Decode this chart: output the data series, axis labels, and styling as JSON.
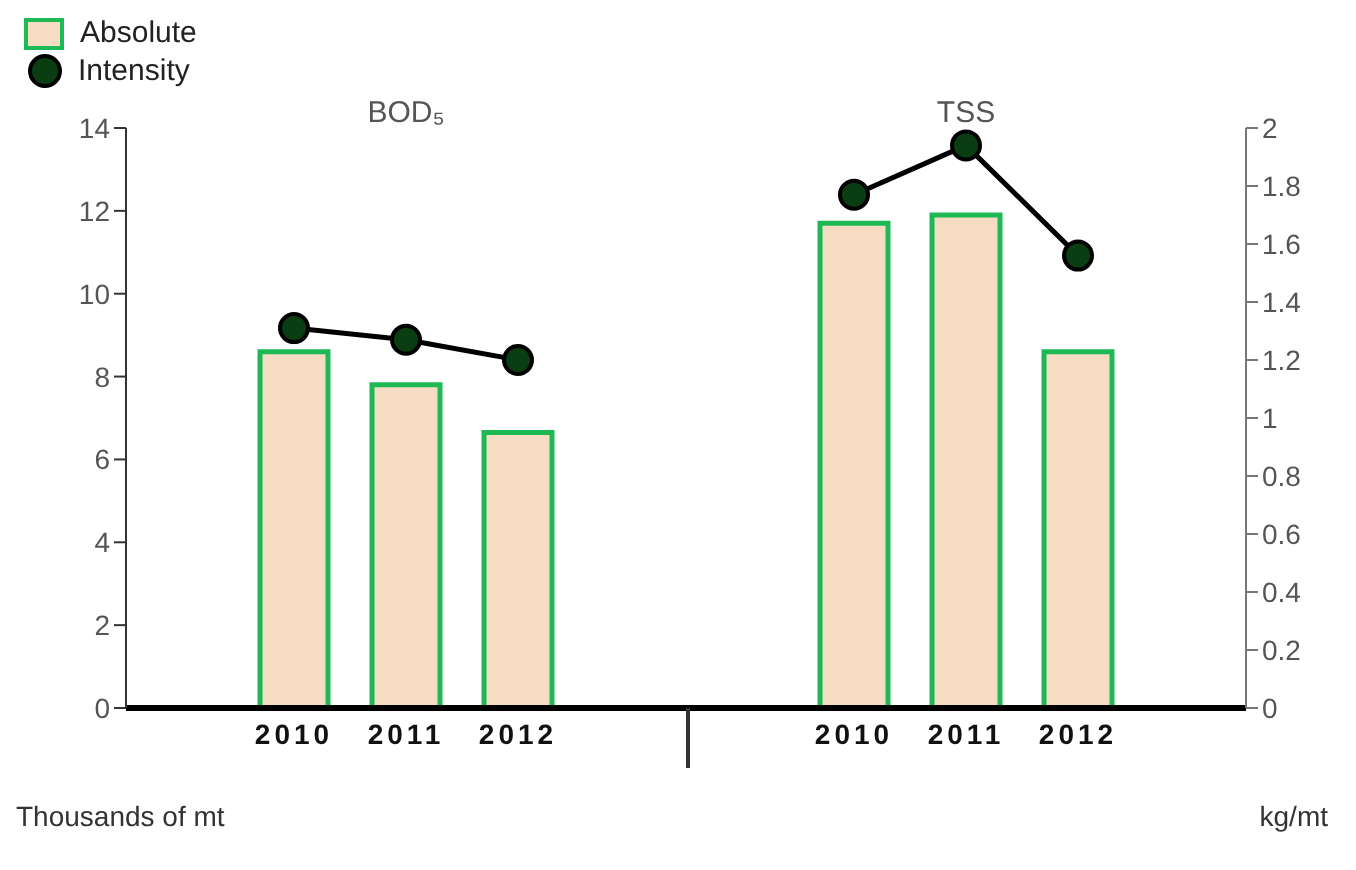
{
  "chart_data": {
    "type": "bar",
    "categories": [
      null,
      "2010",
      "2011",
      "2012",
      null,
      null,
      "2010",
      "2011",
      "2012",
      null
    ],
    "series": [
      {
        "name": "Absolute",
        "color": "#f5dcc2",
        "values": [
          null,
          8.6,
          7.8,
          6.65,
          null,
          null,
          11.7,
          11.9,
          8.6,
          null
        ]
      },
      {
        "name": "Intensity",
        "type": "line",
        "axis": "y2",
        "color": "#0b3d12",
        "values": [
          null,
          1.31,
          1.27,
          1.2,
          null,
          null,
          1.77,
          1.94,
          1.56,
          null
        ]
      }
    ],
    "annotations": [
      "BOD₅",
      "TSS"
    ],
    "xlabel": "Thousands of mt",
    "y2label": "kg/mt",
    "ylim": [
      0,
      14
    ],
    "yticks": [
      0,
      2,
      4,
      6,
      8,
      10,
      12,
      14
    ],
    "y2lim": [
      0,
      2
    ],
    "y2ticks": [
      0,
      0.2,
      0.4,
      0.6,
      0.8,
      1,
      1.2,
      1.4,
      1.6,
      1.8,
      2
    ],
    "marker": "circle",
    "legend": "top left"
  }
}
